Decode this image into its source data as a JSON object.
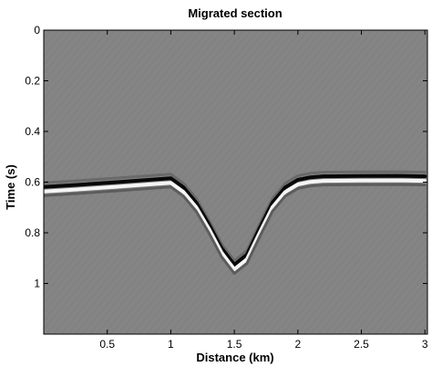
{
  "chart_data": {
    "type": "heatmap",
    "title": "Migrated section",
    "xlabel": "Distance (km)",
    "ylabel": "Time (s)",
    "xlim": [
      0,
      3.02
    ],
    "ylim": [
      1.2,
      0
    ],
    "x_ticks": [
      0.5,
      1,
      1.5,
      2,
      2.5,
      3
    ],
    "y_ticks": [
      0,
      0.2,
      0.4,
      0.6,
      0.8,
      1
    ],
    "x_tick_labels": [
      "0.5",
      "1",
      "1.5",
      "2",
      "2.5",
      "3"
    ],
    "y_tick_labels": [
      "0",
      "0.2",
      "0.4",
      "0.6",
      "0.8",
      "1"
    ],
    "colormap": "gray",
    "background_color": "#828282",
    "reflector": {
      "x": [
        0,
        0.25,
        0.5,
        0.75,
        1.0,
        1.1,
        1.2,
        1.3,
        1.4,
        1.5,
        1.6,
        1.7,
        1.8,
        1.9,
        2.0,
        2.1,
        2.2,
        2.5,
        2.8,
        3.0
      ],
      "t": [
        0.628,
        0.62,
        0.612,
        0.603,
        0.594,
        0.63,
        0.69,
        0.775,
        0.87,
        0.935,
        0.895,
        0.79,
        0.69,
        0.63,
        0.6,
        0.59,
        0.586,
        0.585,
        0.584,
        0.586
      ]
    }
  }
}
